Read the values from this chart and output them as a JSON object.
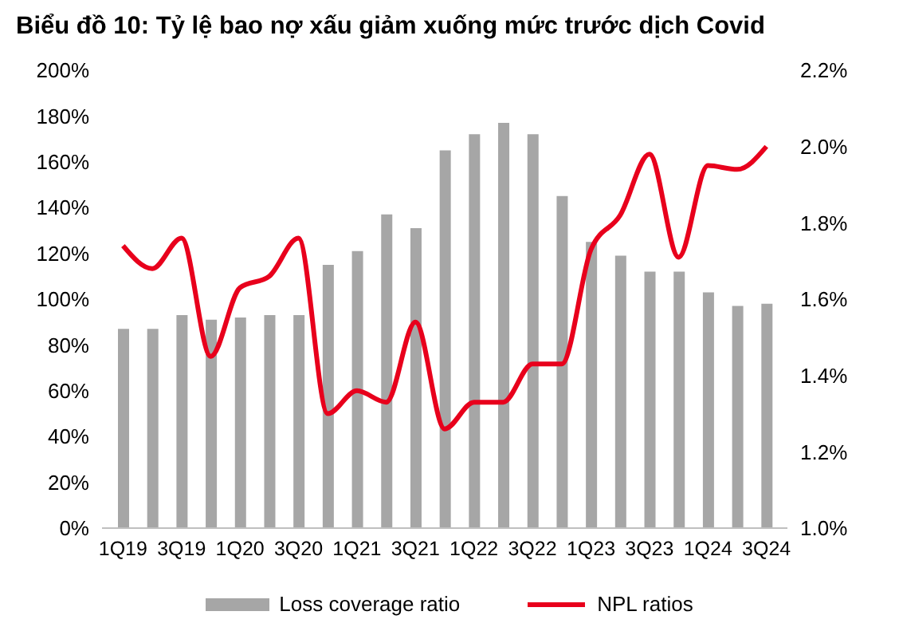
{
  "chart_data": {
    "type": "bar",
    "title": "Biểu đồ 10: Tỷ lệ bao nợ xấu giảm xuống mức trước dịch Covid",
    "categories": [
      "1Q19",
      null,
      "3Q19",
      null,
      "1Q20",
      null,
      "3Q20",
      null,
      "1Q21",
      null,
      "3Q21",
      null,
      "1Q22",
      null,
      "3Q22",
      null,
      "1Q23",
      null,
      "3Q23",
      null,
      "1Q24",
      null,
      "3Q24"
    ],
    "series": [
      {
        "name": "Loss coverage ratio",
        "color": "#a6a6a6",
        "values": [
          87,
          87,
          93,
          91,
          92,
          93,
          93,
          115,
          121,
          137,
          131,
          165,
          172,
          177,
          172,
          145,
          125,
          119,
          112,
          112,
          103,
          97,
          98
        ]
      },
      {
        "name": "NPL ratios",
        "type": "line",
        "axis": "y2",
        "color": "#e8001c",
        "marker": "none",
        "values": [
          1.74,
          1.68,
          1.76,
          1.45,
          1.63,
          1.66,
          1.76,
          1.3,
          1.36,
          1.33,
          1.54,
          1.26,
          1.33,
          1.33,
          1.43,
          1.43,
          1.73,
          1.82,
          1.98,
          1.71,
          1.95,
          1.94,
          2.0
        ]
      }
    ],
    "ylim": [
      0,
      200
    ],
    "yticks": [
      {
        "value": 0,
        "label": "0%"
      },
      {
        "value": 20,
        "label": "20%"
      },
      {
        "value": 40,
        "label": "40%"
      },
      {
        "value": 60,
        "label": "60%"
      },
      {
        "value": 80,
        "label": "80%"
      },
      {
        "value": 100,
        "label": "100%"
      },
      {
        "value": 120,
        "label": "120%"
      },
      {
        "value": 140,
        "label": "140%"
      },
      {
        "value": 160,
        "label": "160%"
      },
      {
        "value": 180,
        "label": "180%"
      },
      {
        "value": 200,
        "label": "200%"
      }
    ],
    "y2lim": [
      1.0,
      2.2
    ],
    "y2ticks": [
      {
        "value": 1.0,
        "label": "1.0%"
      },
      {
        "value": 1.2,
        "label": "1.2%"
      },
      {
        "value": 1.4,
        "label": "1.4%"
      },
      {
        "value": 1.6,
        "label": "1.6%"
      },
      {
        "value": 1.8,
        "label": "1.8%"
      },
      {
        "value": 2.0,
        "label": "2.0%"
      },
      {
        "value": 2.2,
        "label": "2.2%"
      }
    ],
    "grid": false,
    "legend": "bottom"
  }
}
